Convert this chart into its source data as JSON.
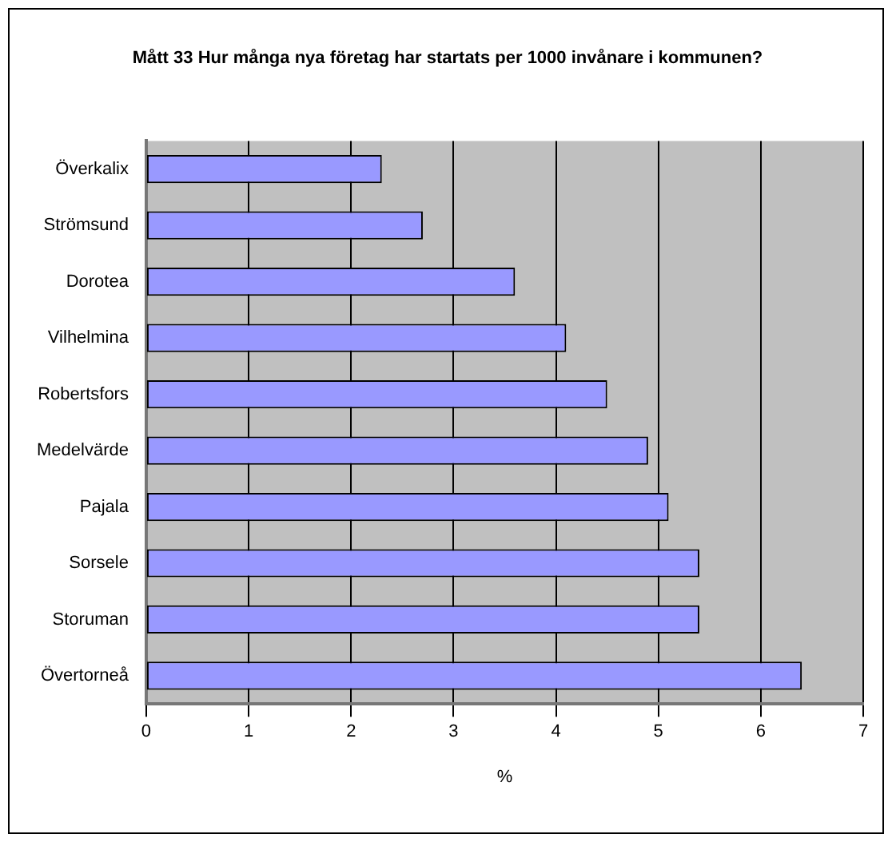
{
  "chart_data": {
    "type": "bar",
    "orientation": "horizontal",
    "title": "Mått 33 Hur många nya företag har startats per 1000 invånare i kommunen?",
    "xlabel": "%",
    "categories": [
      "Överkalix",
      "Strömsund",
      "Dorotea",
      "Vilhelmina",
      "Robertsfors",
      "Medelvärde",
      "Pajala",
      "Sorsele",
      "Storuman",
      "Övertorneå"
    ],
    "values": [
      2.3,
      2.7,
      3.6,
      4.1,
      4.5,
      4.9,
      5.1,
      5.4,
      5.4,
      6.4
    ],
    "color": "#9999ff",
    "xlim": [
      0,
      7
    ],
    "xticks": [
      0,
      1,
      2,
      3,
      4,
      5,
      6,
      7
    ],
    "grid": "x",
    "legend": false
  }
}
